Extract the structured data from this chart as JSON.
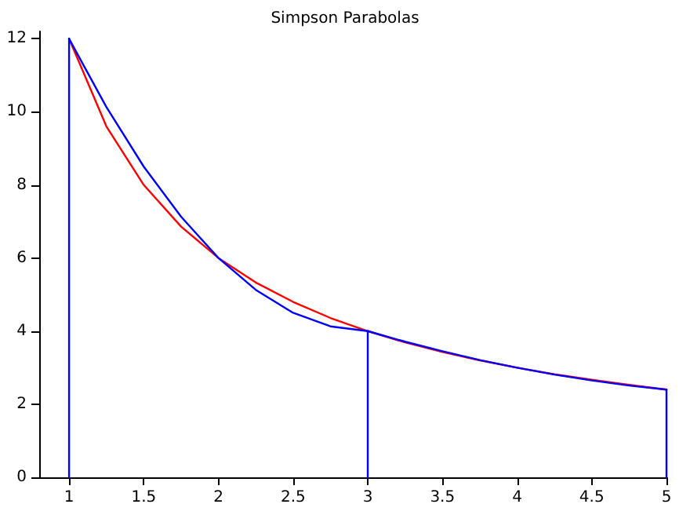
{
  "chart_data": {
    "type": "line",
    "title": "Simpson Parabolas",
    "xlim": [
      0.8,
      5
    ],
    "xticks": [
      1,
      1.5,
      2,
      2.5,
      3,
      3.5,
      4,
      4.5,
      5
    ],
    "ylim": [
      0,
      12.2
    ],
    "yticks": [
      0,
      2,
      4,
      6,
      8,
      10,
      12
    ],
    "grid": false,
    "marker": "none",
    "line_style": "solid",
    "series": [
      {
        "color": "#ff0000",
        "x": [
          1,
          1.25,
          1.5,
          1.75,
          2,
          2.25,
          2.5,
          2.75,
          3,
          3.25,
          3.5,
          3.75,
          4,
          4.25,
          4.5,
          4.75,
          5
        ],
        "values": [
          12,
          9.6,
          8,
          6.86,
          6,
          5.33,
          4.8,
          4.36,
          4,
          3.69,
          3.43,
          3.2,
          3,
          2.82,
          2.67,
          2.53,
          2.4
        ]
      },
      {
        "color": "#0000ff",
        "x": [
          1,
          1.25,
          1.5,
          1.75,
          2,
          2.25,
          2.5,
          2.75,
          3,
          3.25,
          3.5,
          3.75,
          4,
          4.25,
          4.5,
          4.75,
          5
        ],
        "values": [
          12,
          10.13,
          8.5,
          7.13,
          6,
          5.13,
          4.5,
          4.13,
          4,
          3.71,
          3.45,
          3.21,
          3,
          2.81,
          2.65,
          2.51,
          2.4
        ]
      },
      {
        "color": "#0000ff",
        "x": [
          1,
          1
        ],
        "values": [
          0,
          12
        ]
      },
      {
        "color": "#0000ff",
        "x": [
          3,
          3
        ],
        "values": [
          0,
          4
        ]
      },
      {
        "color": "#0000ff",
        "x": [
          5,
          5
        ],
        "values": [
          0,
          2.4
        ]
      }
    ]
  }
}
